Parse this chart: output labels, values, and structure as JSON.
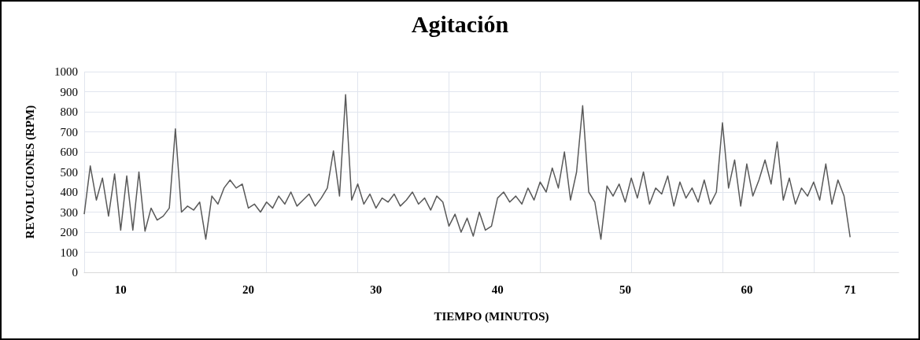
{
  "chart_data": {
    "type": "line",
    "title": "Agitación",
    "xlabel": "TIEMPO (MINUTOS)",
    "ylabel": "REVOLUCIONES (RPM)",
    "categories": [
      null,
      null,
      null,
      null,
      null,
      null,
      "10",
      null,
      null,
      null,
      null,
      null,
      null,
      null,
      null,
      null,
      null,
      null,
      null,
      null,
      null,
      null,
      null,
      null,
      null,
      null,
      null,
      "20",
      null,
      null,
      null,
      null,
      null,
      null,
      null,
      null,
      null,
      null,
      null,
      null,
      null,
      null,
      null,
      null,
      null,
      null,
      null,
      null,
      "30",
      null,
      null,
      null,
      null,
      null,
      null,
      null,
      null,
      null,
      null,
      null,
      null,
      null,
      null,
      null,
      null,
      null,
      null,
      null,
      "40",
      null,
      null,
      null,
      null,
      null,
      null,
      null,
      null,
      null,
      null,
      null,
      null,
      null,
      null,
      null,
      null,
      null,
      null,
      null,
      null,
      "50",
      null,
      null,
      null,
      null,
      null,
      null,
      null,
      null,
      null,
      null,
      null,
      null,
      null,
      null,
      null,
      null,
      null,
      null,
      null,
      "60",
      null,
      null,
      null,
      null,
      null,
      null,
      null,
      null,
      null,
      null,
      null,
      null,
      null,
      null,
      null,
      null,
      "71",
      null,
      null,
      null,
      null,
      null,
      null,
      null,
      null
    ],
    "values": [
      290,
      530,
      360,
      470,
      280,
      490,
      210,
      480,
      210,
      500,
      205,
      320,
      260,
      280,
      320,
      715,
      300,
      330,
      310,
      350,
      165,
      380,
      340,
      420,
      460,
      420,
      440,
      320,
      340,
      300,
      350,
      320,
      380,
      340,
      400,
      330,
      360,
      390,
      330,
      370,
      420,
      605,
      380,
      885,
      360,
      440,
      340,
      390,
      320,
      370,
      350,
      390,
      330,
      360,
      400,
      340,
      370,
      310,
      380,
      350,
      230,
      290,
      200,
      270,
      180,
      300,
      210,
      230,
      370,
      400,
      350,
      380,
      340,
      420,
      360,
      450,
      400,
      520,
      420,
      600,
      360,
      500,
      830,
      400,
      350,
      165,
      430,
      380,
      440,
      350,
      470,
      370,
      500,
      340,
      420,
      390,
      480,
      330,
      450,
      370,
      420,
      350,
      460,
      340,
      400,
      745,
      420,
      560,
      330,
      540,
      380,
      460,
      560,
      440,
      650,
      360,
      470,
      340,
      420,
      380,
      450,
      360,
      540,
      340,
      460,
      380,
      175,
      null,
      null,
      null,
      null,
      null,
      null,
      null,
      null
    ],
    "color": "#595959",
    "ylim": [
      0,
      1000
    ],
    "yticks": [
      0,
      100,
      200,
      300,
      400,
      500,
      600,
      700,
      800,
      900,
      1000
    ],
    "grid": true,
    "marker": "none"
  }
}
